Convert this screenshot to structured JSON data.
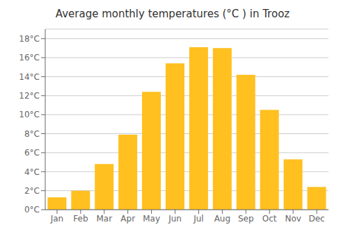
{
  "chart_data": {
    "type": "bar",
    "title": "Average monthly temperatures (°C ) in Trooz",
    "categories": [
      "Jan",
      "Feb",
      "Mar",
      "Apr",
      "May",
      "Jun",
      "Jul",
      "Aug",
      "Sep",
      "Oct",
      "Nov",
      "Dec"
    ],
    "values": [
      1.3,
      2.0,
      4.8,
      7.9,
      12.4,
      15.4,
      17.1,
      17.0,
      14.2,
      10.5,
      5.3,
      2.4
    ],
    "color": "#FFC020",
    "ylim": [
      0,
      19
    ],
    "yticks": [
      {
        "value": 0,
        "label": "0°C"
      },
      {
        "value": 2,
        "label": "2°C"
      },
      {
        "value": 4,
        "label": "4°C"
      },
      {
        "value": 6,
        "label": "6°C"
      },
      {
        "value": 8,
        "label": "8°C"
      },
      {
        "value": 10,
        "label": "10°C"
      },
      {
        "value": 12,
        "label": "12°C"
      },
      {
        "value": 14,
        "label": "14°C"
      },
      {
        "value": 16,
        "label": "16°C"
      },
      {
        "value": 18,
        "label": "18°C"
      }
    ],
    "grid": true
  }
}
